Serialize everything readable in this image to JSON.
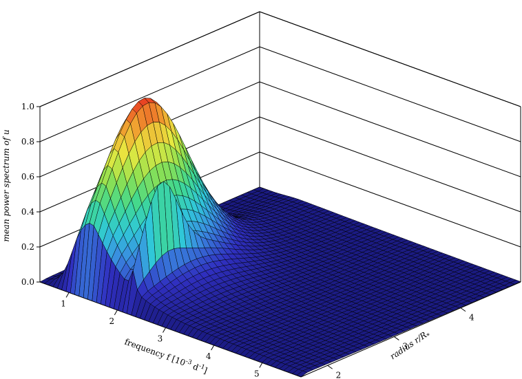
{
  "chart_data": {
    "type": "surface3d",
    "title": "",
    "x_axis": {
      "label": "frequency f [10",
      "label_exp1": "-3",
      "label_mid": " d",
      "label_exp2": "-1",
      "label_end": "]",
      "range": [
        0.4,
        5.8
      ],
      "ticks": [
        1,
        2,
        3,
        4,
        5
      ],
      "tick_labels": [
        "1",
        "2",
        "3",
        "4",
        "5"
      ]
    },
    "y_axis": {
      "label_prefix": "radius ",
      "label_var": "r/R",
      "label_sub": "*",
      "range": [
        1.6,
        4.9
      ],
      "ticks": [
        2,
        3,
        4
      ],
      "tick_labels": [
        "2",
        "3",
        "4"
      ]
    },
    "z_axis": {
      "label": "mean power spectrum of u",
      "range": [
        0,
        1.0
      ],
      "ticks": [
        0.0,
        0.2,
        0.4,
        0.6,
        0.8,
        1.0
      ],
      "tick_labels": [
        "0.0",
        "0.2",
        "0.4",
        "0.6",
        "0.8",
        "1.0"
      ]
    },
    "surface": {
      "model": "power peaks near r/R*≈2.5 at low frequency (f≈1.0–1.5) and decays with frequency and radius; secondary ridge near f≈2.2",
      "peak_value": 1.0,
      "peak_frequency": 1.35,
      "peak_radius": 2.5,
      "secondary_ridge_frequency": 2.2,
      "secondary_ridge_value": 0.45
    },
    "grid": true,
    "colormap": [
      "#1a1a80",
      "#3030c0",
      "#3a8ae0",
      "#30c8d8",
      "#40d890",
      "#90e050",
      "#e8e840",
      "#f0a030",
      "#e83020"
    ]
  }
}
